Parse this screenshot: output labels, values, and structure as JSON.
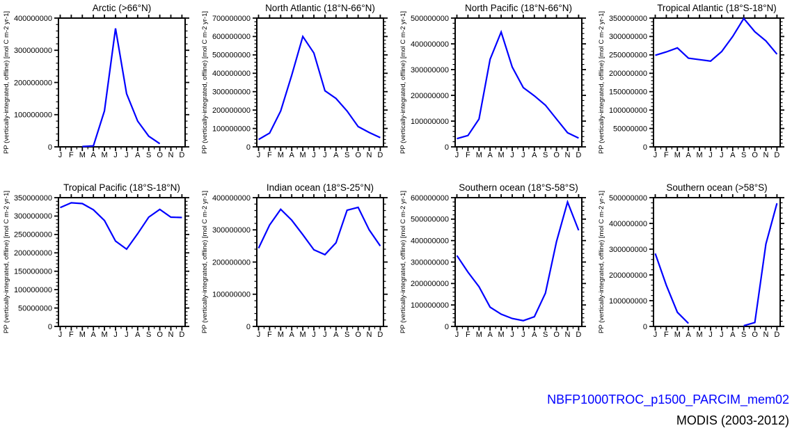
{
  "page": {
    "background_color": "#ffffff",
    "line_color": "#0000ff",
    "axis_color": "#000000"
  },
  "legend": {
    "model_label": "NBFP1000TROC_p1500_PARCIM_mem02",
    "model_color": "#0000ff",
    "obs_label": "MODIS (2003-2012)",
    "obs_color": "#000000"
  },
  "chart_data": [
    {
      "type": "line",
      "title": "Arctic (>66°N)",
      "ylabel": "PP (vertically-integrated, offline) [mol C m-2 yr-1]",
      "categories": [
        "J",
        "F",
        "M",
        "A",
        "M",
        "J",
        "J",
        "A",
        "S",
        "O",
        "N",
        "D"
      ],
      "ylim": [
        0,
        400000000
      ],
      "ytick_step": 100000000,
      "grid": false,
      "values": [
        null,
        null,
        1000000,
        3000000,
        112000000,
        368000000,
        165000000,
        80000000,
        33000000,
        10000000,
        null,
        null
      ]
    },
    {
      "type": "line",
      "title": "North Atlantic (18°N-66°N)",
      "ylabel": "PP (vertically-integrated, offline) [mol C m-2 yr-1]",
      "categories": [
        "J",
        "F",
        "M",
        "A",
        "M",
        "J",
        "J",
        "A",
        "S",
        "O",
        "N",
        "D"
      ],
      "ylim": [
        0,
        700000000
      ],
      "ytick_step": 100000000,
      "grid": false,
      "values": [
        40000000,
        75000000,
        195000000,
        390000000,
        600000000,
        510000000,
        305000000,
        263000000,
        195000000,
        110000000,
        78000000,
        50000000
      ]
    },
    {
      "type": "line",
      "title": "North Pacific (18°N-66°N)",
      "ylabel": "PP (vertically-integrated, offline) [mol C m-2 yr-1]",
      "categories": [
        "J",
        "F",
        "M",
        "A",
        "M",
        "J",
        "J",
        "A",
        "S",
        "O",
        "N",
        "D"
      ],
      "ylim": [
        0,
        500000000
      ],
      "ytick_step": 100000000,
      "grid": false,
      "values": [
        32000000,
        44000000,
        108000000,
        340000000,
        446000000,
        310000000,
        230000000,
        198000000,
        162000000,
        108000000,
        55000000,
        34000000
      ]
    },
    {
      "type": "line",
      "title": "Tropical Atlantic (18°S-18°N)",
      "ylabel": "PP (vertically-integrated, offline) [mol C m-2 yr-1]",
      "categories": [
        "J",
        "F",
        "M",
        "A",
        "M",
        "J",
        "J",
        "A",
        "S",
        "O",
        "N",
        "D"
      ],
      "ylim": [
        0,
        350000000
      ],
      "ytick_step": 50000000,
      "grid": false,
      "values": [
        249000000,
        258000000,
        269000000,
        241000000,
        237000000,
        233000000,
        259000000,
        300000000,
        349000000,
        313000000,
        288000000,
        252000000
      ]
    },
    {
      "type": "line",
      "title": "Tropical Pacific (18°S-18°N)",
      "ylabel": "PP (vertically-integrated, offline) [mol C m-2 yr-1]",
      "categories": [
        "J",
        "F",
        "M",
        "A",
        "M",
        "J",
        "J",
        "A",
        "S",
        "O",
        "N",
        "D"
      ],
      "ylim": [
        0,
        350000000
      ],
      "ytick_step": 50000000,
      "grid": false,
      "values": [
        323000000,
        336000000,
        334000000,
        317000000,
        288000000,
        232000000,
        210000000,
        252000000,
        297000000,
        318000000,
        297000000,
        296000000
      ]
    },
    {
      "type": "line",
      "title": "Indian ocean (18°S-25°N)",
      "ylabel": "PP (vertically-integrated, offline) [mol C m-2 yr-1]",
      "categories": [
        "J",
        "F",
        "M",
        "A",
        "M",
        "J",
        "J",
        "A",
        "S",
        "O",
        "N",
        "D"
      ],
      "ylim": [
        0,
        400000000
      ],
      "ytick_step": 100000000,
      "grid": false,
      "values": [
        243000000,
        315000000,
        364000000,
        330000000,
        285000000,
        238000000,
        223000000,
        260000000,
        361000000,
        370000000,
        300000000,
        250000000
      ]
    },
    {
      "type": "line",
      "title": "Southern ocean (18°S-58°S)",
      "ylabel": "PP (vertically-integrated, offline) [mol C m-2 yr-1]",
      "categories": [
        "J",
        "F",
        "M",
        "A",
        "M",
        "J",
        "J",
        "A",
        "S",
        "O",
        "N",
        "D"
      ],
      "ylim": [
        0,
        600000000
      ],
      "ytick_step": 100000000,
      "grid": false,
      "values": [
        330000000,
        253000000,
        185000000,
        90000000,
        57000000,
        37000000,
        27000000,
        45000000,
        155000000,
        395000000,
        580000000,
        448000000
      ]
    },
    {
      "type": "line",
      "title": "Southern ocean (>58°S)",
      "ylabel": "PP (vertically-integrated, offline) [mol C m-2 yr-1]",
      "categories": [
        "J",
        "F",
        "M",
        "A",
        "M",
        "J",
        "J",
        "A",
        "S",
        "O",
        "N",
        "D"
      ],
      "ylim": [
        0,
        500000000
      ],
      "ytick_step": 100000000,
      "grid": false,
      "values": [
        283000000,
        160000000,
        55000000,
        12000000,
        null,
        null,
        null,
        null,
        3000000,
        15000000,
        320000000,
        478000000
      ]
    }
  ]
}
